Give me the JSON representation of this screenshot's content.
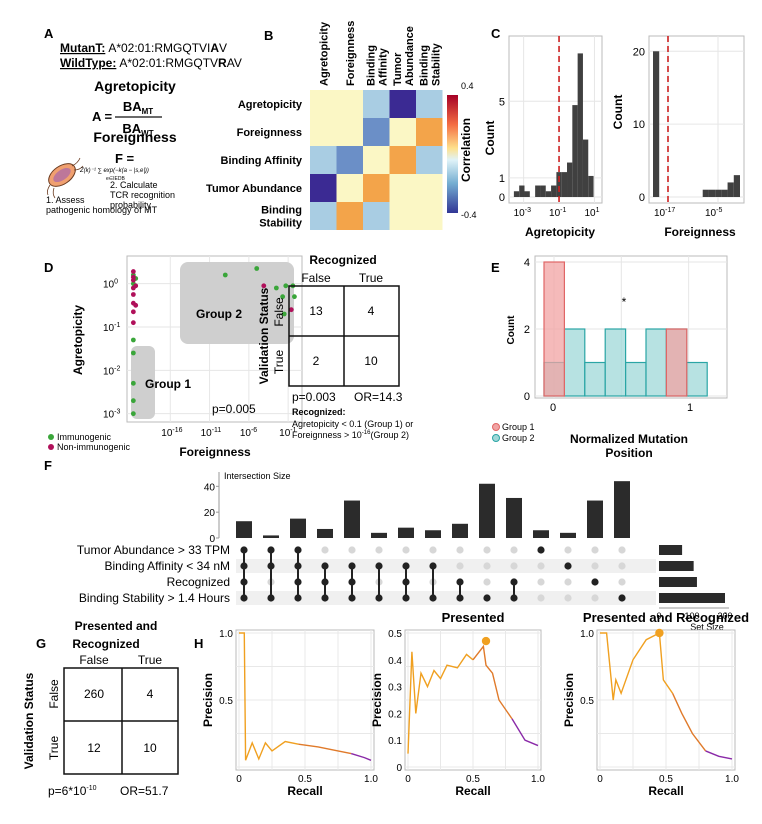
{
  "panel_a": {
    "label": "A",
    "mutant_label": "MutanT:",
    "mutant_prefix": "A*02:01:RMGQTVI",
    "mutant_residue": "A",
    "mutant_suffix": "V",
    "wildtype_label": "WildType:",
    "wildtype_prefix": "A*02:01:RMGQTV",
    "wildtype_residue": "R",
    "wildtype_suffix": "AV",
    "agretopicity_heading": "Agretopicity",
    "formula_lhs": "A =",
    "numerator_sub": "MT",
    "denominator_sub": "WT",
    "foreignness_heading": "Foreignness",
    "formula_f_lhs": "F =",
    "step1_line1": "1. Assess",
    "step1_line2": "pathogenic homology of MT",
    "step2_line1": "2. Calculate",
    "step2_line2": "TCR recognition",
    "step2_line3": "probability"
  },
  "panel_b": {
    "label": "B",
    "colorbar_max": "0.4",
    "colorbar_min": "-0.4",
    "colorbar_title": "Correlation",
    "colors": {
      "neg_strong": "#3b2a93",
      "neg_mid": "#6b8fc7",
      "neg_weak": "#a9cde3",
      "neutral": "#fbf7c5",
      "pos_mid": "#f3a44a"
    }
  },
  "chart_data": [
    {
      "type": "heatmap",
      "title": "Correlation",
      "rows": [
        "Agretopicity",
        "Foreignness",
        "Binding Affinity",
        "Tumor Abundance",
        "Binding Stability"
      ],
      "cols": [
        "Agretopicity",
        "Foreignness",
        "Binding Affinity",
        "Tumor Abundance",
        "Binding Stability"
      ],
      "col_labels": [
        [
          "Agretopicity"
        ],
        [
          "Foreignness"
        ],
        [
          "Binding",
          "Affinity"
        ],
        [
          "Tumor",
          "Abundance"
        ],
        [
          "Binding",
          "Stability"
        ]
      ],
      "values": [
        [
          0,
          0.02,
          -0.2,
          -0.4,
          -0.2
        ],
        [
          0.02,
          0,
          -0.3,
          0.02,
          0.2
        ],
        [
          -0.2,
          -0.3,
          0,
          0.2,
          -0.15
        ],
        [
          -0.4,
          0.02,
          0.2,
          0,
          0.02
        ],
        [
          -0.2,
          0.2,
          -0.15,
          0.02,
          0
        ]
      ],
      "zlim": [
        -0.4,
        0.4
      ]
    },
    {
      "type": "bar",
      "title": "",
      "xlabel": "Agretopicity",
      "ylabel": "Count",
      "x_log_exponents": [
        -3.4,
        -3.1,
        -2.8,
        -2.5,
        -2.2,
        -1.9,
        -1.6,
        -1.3,
        -1.0,
        -0.7,
        -0.4,
        -0.1,
        0.2,
        0.5,
        0.8
      ],
      "values": [
        0.3,
        0.6,
        0.3,
        0,
        0.6,
        0.6,
        0.3,
        0.6,
        1.3,
        1.3,
        1.8,
        4.8,
        7.5,
        3,
        1.1
      ],
      "xticks": [
        "10^-3",
        "10^-1",
        "10^1"
      ],
      "yticks": [
        0,
        1,
        5
      ],
      "cutoff_label": "10^-1"
    },
    {
      "type": "bar",
      "title": "",
      "xlabel": "Foreignness",
      "ylabel": "Count",
      "values": [
        20,
        0,
        0,
        0,
        0,
        0,
        0,
        0,
        1,
        1,
        1,
        1,
        2,
        3
      ],
      "xticks": [
        "10^-17",
        "10^-5"
      ],
      "yticks": [
        0,
        10,
        20
      ],
      "ylim": [
        0,
        22
      ]
    },
    {
      "type": "scatter",
      "title": "",
      "xlabel": "Foreignness",
      "ylabel": "Agretopicity",
      "xticks": [
        "10^-16",
        "10^-11",
        "10^-6",
        "10^-1"
      ],
      "yticks": [
        "10^0",
        "10^-1",
        "10^-2",
        "10^-3"
      ],
      "x_log_range": [
        -21,
        0
      ],
      "y_log_range": [
        -3.1,
        0.5
      ],
      "series": [
        {
          "name": "Immunogenic",
          "points": [
            [
              -20.7,
              0.2
            ],
            [
              -20.7,
              0.0
            ],
            [
              -20.7,
              -1.3
            ],
            [
              -20.7,
              -1.6
            ],
            [
              -20.7,
              -2.3
            ],
            [
              -20.7,
              -2.7
            ],
            [
              -20.7,
              -3.0
            ],
            [
              -20.4,
              0.12
            ],
            [
              -9.0,
              0.2
            ],
            [
              -5.0,
              0.35
            ],
            [
              -2.5,
              -0.1
            ],
            [
              -1.7,
              -0.3
            ],
            [
              -1.5,
              -0.7
            ],
            [
              -1.3,
              -0.05
            ],
            [
              -0.4,
              -0.05
            ],
            [
              -0.2,
              -0.3
            ]
          ]
        },
        {
          "name": "Non-immunogenic",
          "points": [
            [
              -20.7,
              0.28
            ],
            [
              -20.7,
              0.15
            ],
            [
              -20.7,
              0.08
            ],
            [
              -20.7,
              -0.1
            ],
            [
              -20.7,
              -0.25
            ],
            [
              -20.7,
              -0.45
            ],
            [
              -20.7,
              -0.65
            ],
            [
              -20.7,
              -0.9
            ],
            [
              -20.4,
              -0.05
            ],
            [
              -20.4,
              -0.5
            ],
            [
              -4.1,
              -0.05
            ],
            [
              -0.6,
              -0.6
            ]
          ]
        }
      ]
    },
    {
      "type": "bar",
      "title": "",
      "xlabel": "Normalized Mutation Position",
      "ylabel": "Count",
      "xticks": [
        "0",
        "1"
      ],
      "yticks": [
        0,
        2,
        4
      ],
      "ylim": [
        0,
        4
      ],
      "series": [
        {
          "name": "Group 1",
          "values": [
            4,
            0,
            0,
            0,
            0,
            0,
            2,
            0
          ]
        },
        {
          "name": "Group 2",
          "values": [
            1,
            2,
            1,
            2,
            1,
            2,
            2,
            1
          ]
        }
      ]
    },
    {
      "type": "bar",
      "title": "Intersection Size",
      "values": [
        13,
        2,
        15,
        7,
        29,
        4,
        8,
        6,
        11,
        42,
        31,
        6,
        4,
        29,
        44
      ],
      "yticks": [
        0,
        20,
        40
      ],
      "ylim": [
        0,
        48
      ],
      "sets": [
        "Tumor Abundance > 33 TPM",
        "Binding Affinity < 34 nM",
        "Recognized",
        "Binding Stability > 1.4 Hours"
      ],
      "set_sizes": [
        70,
        105,
        115,
        200
      ],
      "set_size_ticks": [
        0,
        100,
        200
      ],
      "memberships": [
        [
          0,
          1,
          2,
          3
        ],
        [
          0,
          1,
          3
        ],
        [
          0,
          1,
          2,
          3
        ],
        [
          1,
          2,
          3
        ],
        [
          1,
          2,
          3
        ],
        [
          1,
          3
        ],
        [
          1,
          2,
          3
        ],
        [
          1,
          3
        ],
        [
          2,
          3
        ],
        [
          3
        ],
        [
          2,
          3
        ],
        [
          0
        ],
        [
          1
        ],
        [
          2
        ],
        [
          3
        ]
      ]
    },
    {
      "type": "line",
      "title": "",
      "xlabel": "Recall",
      "ylabel": "Precision",
      "xlim": [
        0,
        1
      ],
      "ylim": [
        0,
        1
      ],
      "xticks": [
        0,
        0.5,
        1.0
      ],
      "yticks": [
        0.5,
        1.0
      ],
      "points": [
        [
          0,
          1.0
        ],
        [
          0.04,
          1.0
        ],
        [
          0.05,
          0.05
        ],
        [
          0.1,
          0.18
        ],
        [
          0.15,
          0.06
        ],
        [
          0.2,
          0.18
        ],
        [
          0.25,
          0.12
        ],
        [
          0.35,
          0.19
        ],
        [
          0.45,
          0.17
        ],
        [
          0.6,
          0.15
        ],
        [
          0.75,
          0.12
        ],
        [
          0.85,
          0.1
        ],
        [
          0.95,
          0.07
        ],
        [
          1.0,
          0.05
        ]
      ]
    },
    {
      "type": "line",
      "title": "Presented",
      "xlabel": "Recall",
      "ylabel": "Precision",
      "xlim": [
        0,
        1
      ],
      "ylim": [
        0,
        0.5
      ],
      "xticks": [
        0,
        0.5,
        1.0
      ],
      "yticks": [
        0,
        0.1,
        0.2,
        0.3,
        0.4,
        0.5
      ],
      "points": [
        [
          0,
          0.05
        ],
        [
          0.03,
          0.43
        ],
        [
          0.06,
          0.2
        ],
        [
          0.1,
          0.35
        ],
        [
          0.15,
          0.3
        ],
        [
          0.2,
          0.36
        ],
        [
          0.25,
          0.33
        ],
        [
          0.3,
          0.38
        ],
        [
          0.38,
          0.37
        ],
        [
          0.45,
          0.42
        ],
        [
          0.5,
          0.4
        ],
        [
          0.58,
          0.45
        ],
        [
          0.6,
          0.38
        ],
        [
          0.65,
          0.35
        ],
        [
          0.7,
          0.25
        ],
        [
          0.8,
          0.18
        ],
        [
          0.9,
          0.1
        ],
        [
          1.0,
          0.08
        ]
      ],
      "marker": [
        0.6,
        0.47
      ]
    },
    {
      "type": "line",
      "title": "Presented and Recognized",
      "xlabel": "Recall",
      "ylabel": "Precision",
      "xlim": [
        0,
        1
      ],
      "ylim": [
        0,
        1
      ],
      "xticks": [
        0,
        0.5,
        1.0
      ],
      "yticks": [
        0.5,
        1.0
      ],
      "points": [
        [
          0,
          1.0
        ],
        [
          0.05,
          1.0
        ],
        [
          0.1,
          0.5
        ],
        [
          0.12,
          0.65
        ],
        [
          0.16,
          0.55
        ],
        [
          0.25,
          0.8
        ],
        [
          0.35,
          0.95
        ],
        [
          0.45,
          1.0
        ],
        [
          0.48,
          0.65
        ],
        [
          0.55,
          0.55
        ],
        [
          0.62,
          0.4
        ],
        [
          0.7,
          0.25
        ],
        [
          0.8,
          0.12
        ],
        [
          0.9,
          0.08
        ],
        [
          1.0,
          0.06
        ]
      ],
      "marker": [
        0.45,
        1.0
      ]
    }
  ],
  "panel_c": {
    "label": "C",
    "ylabel": "Count"
  },
  "panel_d": {
    "label": "D",
    "group2_label": "Group 2",
    "group1_label": "Group 1",
    "p_value": "p=0.005",
    "ylabel": "Agretopicity",
    "xlabel": "Foreignness",
    "legend_immunogenic": "Immunogenic",
    "legend_nonimmunogenic": "Non-immunogenic"
  },
  "table1": {
    "title": "Recognized",
    "col_false": "False",
    "col_true": "True",
    "row_false": "False",
    "row_true": "True",
    "row_title": "Validation Status",
    "cells": [
      "13",
      "4",
      "2",
      "10"
    ],
    "p_value": "p=0.003",
    "odds_ratio": "OR=14.3",
    "note_title": "Recognized:",
    "note_line1": "Agretopicity < 0.1 (Group 1) or",
    "note_line2_a": "Foreignness > 10",
    "note_line2_exp": "-16",
    "note_line2_b": "(Group 2)"
  },
  "panel_e": {
    "label": "E",
    "star": "*",
    "ylabel": "Count",
    "xlabel_line1": "Normalized Mutation",
    "xlabel_line2": "Position",
    "legend1": "Group 1",
    "legend2": "Group 2"
  },
  "panel_f": {
    "label": "F",
    "intersection_label": "Intersection Size",
    "set_size_label": "Set Size"
  },
  "panel_g": {
    "label": "G",
    "title_line1": "",
    "title_a": "Presented and",
    "title_b": "Recognized",
    "col_false": "False",
    "col_true": "True",
    "row_false": "False",
    "row_true": "True",
    "row_title": "Validation Status",
    "cells": [
      "260",
      "4",
      "12",
      "10"
    ],
    "p_value_a": "p=6*10",
    "p_value_exp": "-10",
    "odds_ratio": "OR=51.7"
  },
  "panel_h": {
    "label": "H"
  },
  "colors": {
    "bar_dark": "#404040",
    "cutoff_red": "#cc1f1f",
    "immunogenic": "#3aa63a",
    "nonimmunogenic": "#b0105a",
    "group1_fill": "#f1a3a3",
    "group1_stroke": "#e06666",
    "group2_fill": "#9fd8d8",
    "group2_stroke": "#2aa5a5",
    "pr_orange": "#f0a020",
    "pr_dark_orange": "#e07a2a",
    "pr_purple": "#8a2aa8"
  }
}
